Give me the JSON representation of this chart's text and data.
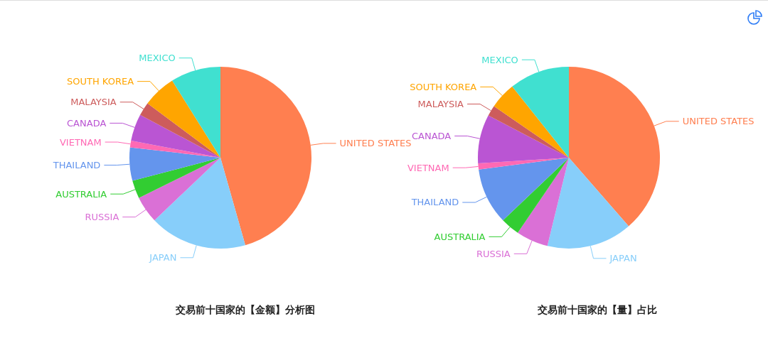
{
  "chart_data": [
    {
      "type": "pie",
      "title": "交易前十国家的【金额】分析图",
      "categories": [
        "UNITED STATES",
        "JAPAN",
        "RUSSIA",
        "AUSTRALIA",
        "THAILAND",
        "VIETNAM",
        "CANADA",
        "MALAYSIA",
        "SOUTH KOREA",
        "MEXICO"
      ],
      "values": [
        45.6,
        17.3,
        4.8,
        3.2,
        5.9,
        1.2,
        4.8,
        2.4,
        5.9,
        8.9
      ],
      "colors": [
        "#ff7f50",
        "#87cefa",
        "#da70d6",
        "#32cd32",
        "#6495ed",
        "#ff69b4",
        "#ba55d3",
        "#cd5c5c",
        "#ffa500",
        "#40e0d0"
      ]
    },
    {
      "type": "pie",
      "title": "交易前十国家的【量】占比",
      "categories": [
        "UNITED STATES",
        "JAPAN",
        "RUSSIA",
        "AUSTRALIA",
        "THAILAND",
        "VIETNAM",
        "CANADA",
        "MALAYSIA",
        "SOUTH KOREA",
        "MEXICO"
      ],
      "values": [
        38.6,
        15.2,
        5.7,
        3.4,
        10.0,
        1.1,
        8.7,
        1.9,
        4.7,
        10.7
      ],
      "colors": [
        "#ff7f50",
        "#87cefa",
        "#da70d6",
        "#32cd32",
        "#6495ed",
        "#ff69b4",
        "#ba55d3",
        "#cd5c5c",
        "#ffa500",
        "#40e0d0"
      ]
    }
  ]
}
